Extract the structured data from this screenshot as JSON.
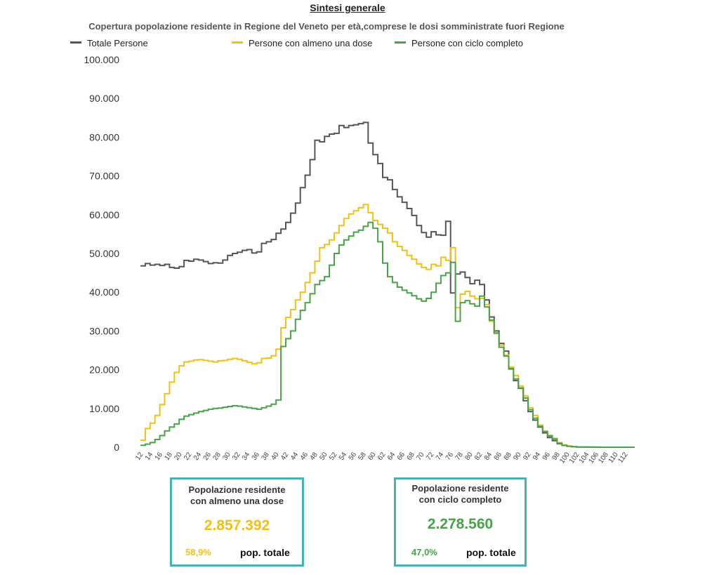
{
  "header": {
    "title": "Sintesi generale",
    "subtitle": "Copertura popolazione residente in Regione del Veneto per età,comprese le dosi somministrate fuori Regione"
  },
  "colors": {
    "totale": "#555555",
    "almeno_una": "#f0bf1a",
    "ciclo": "#48a24a",
    "card_border": "#44b3b3"
  },
  "chart_data": {
    "type": "line",
    "step": true,
    "title": "",
    "xlabel": "",
    "ylabel": "",
    "ylim": [
      0,
      100000
    ],
    "y_ticks": [
      "0",
      "10.000",
      "20.000",
      "30.000",
      "40.000",
      "50.000",
      "60.000",
      "70.000",
      "80.000",
      "90.000",
      "100.000"
    ],
    "x_ticks": [
      "12",
      "14",
      "16",
      "18",
      "20",
      "22",
      "24",
      "26",
      "28",
      "30",
      "32",
      "34",
      "36",
      "38",
      "40",
      "42",
      "44",
      "46",
      "48",
      "50",
      "52",
      "54",
      "56",
      "58",
      "60",
      "62",
      "64",
      "66",
      "68",
      "70",
      "72",
      "74",
      "76",
      "78",
      "80",
      "82",
      "84",
      "86",
      "88",
      "90",
      "92",
      "94",
      "96",
      "98",
      "100",
      "102",
      "104",
      "106",
      "108",
      "110",
      "112"
    ],
    "x": [
      12,
      13,
      14,
      15,
      16,
      17,
      18,
      19,
      20,
      21,
      22,
      23,
      24,
      25,
      26,
      27,
      28,
      29,
      30,
      31,
      32,
      33,
      34,
      35,
      36,
      37,
      38,
      39,
      40,
      41,
      42,
      43,
      44,
      45,
      46,
      47,
      48,
      49,
      50,
      51,
      52,
      53,
      54,
      55,
      56,
      57,
      58,
      59,
      60,
      61,
      62,
      63,
      64,
      65,
      66,
      67,
      68,
      69,
      70,
      71,
      72,
      73,
      74,
      75,
      76,
      77,
      78,
      79,
      80,
      81,
      82,
      83,
      84,
      85,
      86,
      87,
      88,
      89,
      90,
      91,
      92,
      93,
      94,
      95,
      96,
      97,
      98,
      99,
      100,
      101,
      102,
      103,
      104,
      105,
      106,
      107,
      108,
      109,
      110,
      111,
      112,
      113
    ],
    "legend_position": "top",
    "series": [
      {
        "name": "Totale Persone",
        "values": [
          46800,
          47400,
          47000,
          47200,
          46900,
          47200,
          46400,
          46200,
          46600,
          48200,
          48000,
          48500,
          48300,
          47900,
          47400,
          47600,
          47500,
          48300,
          49500,
          50000,
          50300,
          50800,
          51000,
          50100,
          50400,
          52600,
          53000,
          53600,
          55200,
          56300,
          58000,
          60400,
          63000,
          67000,
          70200,
          74200,
          79200,
          78800,
          80200,
          80800,
          81000,
          83000,
          82500,
          83000,
          83200,
          83500,
          83800,
          78500,
          75500,
          73200,
          69600,
          69000,
          66500,
          64600,
          63200,
          61600,
          59800,
          57200,
          55400,
          54200,
          55600,
          54800,
          54700,
          58300,
          39800,
          44700,
          45200,
          43800,
          42200,
          43100,
          42000,
          38000,
          33600,
          30000,
          26800,
          24800,
          20200,
          17200,
          15200,
          12000,
          9200,
          7000,
          5200,
          3700,
          2500,
          1700,
          900,
          500,
          250,
          150,
          80,
          50,
          30,
          20,
          10,
          0,
          0,
          0,
          0,
          0,
          0,
          0
        ],
        "color": "#555555"
      },
      {
        "name": "Persone con almeno una dose",
        "values": [
          1800,
          4800,
          6200,
          8200,
          11000,
          13800,
          16800,
          19300,
          21000,
          22000,
          22200,
          22500,
          22600,
          22400,
          22200,
          22000,
          22300,
          22400,
          22700,
          22900,
          22700,
          22300,
          21900,
          21500,
          21800,
          22900,
          23000,
          23600,
          25300,
          30800,
          33500,
          35500,
          38000,
          40000,
          42500,
          45000,
          48000,
          51500,
          52300,
          53500,
          55300,
          57200,
          59000,
          60200,
          61000,
          61800,
          62600,
          60500,
          58500,
          57500,
          56500,
          55300,
          53000,
          51800,
          50800,
          49500,
          48500,
          47300,
          46400,
          45900,
          47200,
          46800,
          49000,
          48200,
          51500,
          36000,
          39500,
          40200,
          39000,
          38300,
          38400,
          36800,
          32500,
          29300,
          26300,
          23800,
          20700,
          18500,
          15800,
          13200,
          10200,
          8200,
          5700,
          4200,
          3100,
          2300,
          1200,
          600,
          300,
          150,
          80,
          50,
          30,
          20,
          10,
          0,
          0,
          0,
          0,
          0,
          0,
          0
        ],
        "color": "#f0bf1a"
      },
      {
        "name": "Persone con ciclo completo",
        "values": [
          500,
          800,
          1200,
          2000,
          3000,
          4200,
          5200,
          6000,
          7200,
          8000,
          8400,
          8800,
          9200,
          9500,
          9800,
          10000,
          10100,
          10300,
          10500,
          10700,
          10600,
          10400,
          10200,
          10000,
          9800,
          10200,
          10600,
          11100,
          12200,
          26000,
          28000,
          30000,
          33000,
          35300,
          37300,
          39600,
          42000,
          43000,
          44000,
          47000,
          50000,
          52200,
          53500,
          54500,
          55500,
          56000,
          57000,
          58000,
          56500,
          53000,
          47500,
          44000,
          42500,
          41300,
          40500,
          39800,
          39100,
          38300,
          37700,
          38400,
          40000,
          42300,
          44300,
          45000,
          47700,
          32500,
          37300,
          37800,
          37000,
          36400,
          39000,
          36200,
          32800,
          29500,
          25800,
          23500,
          20300,
          17600,
          15300,
          12700,
          9700,
          7500,
          5400,
          4000,
          2900,
          2100,
          1000,
          500,
          250,
          120,
          60,
          40,
          20,
          10,
          0,
          0,
          0,
          0,
          0,
          0,
          0,
          0
        ],
        "color": "#48a24a"
      }
    ]
  },
  "cards": [
    {
      "title_line1": "Popolazione residente",
      "title_line2": "con almeno una dose",
      "value": "2.857.392",
      "percent": "58,9%",
      "unit": "pop. totale",
      "color": "#f0bf1a"
    },
    {
      "title_line1": "Popolazione residente",
      "title_line2": "con ciclo completo",
      "value": "2.278.560",
      "percent": "47,0%",
      "unit": "pop. totale",
      "color": "#48a24a"
    }
  ]
}
